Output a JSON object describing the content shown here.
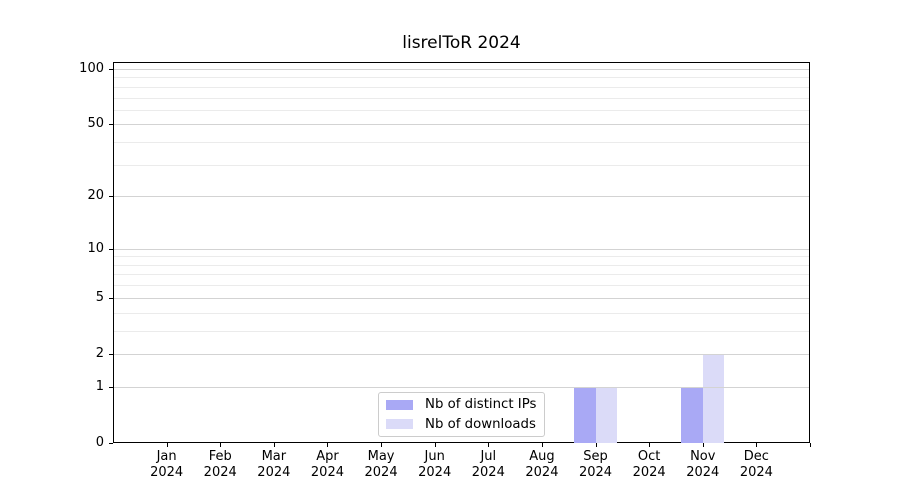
{
  "chart_data": {
    "type": "bar",
    "title": "lisrelToR 2024",
    "categories": [
      {
        "month": "Jan",
        "year": "2024"
      },
      {
        "month": "Feb",
        "year": "2024"
      },
      {
        "month": "Mar",
        "year": "2024"
      },
      {
        "month": "Apr",
        "year": "2024"
      },
      {
        "month": "May",
        "year": "2024"
      },
      {
        "month": "Jun",
        "year": "2024"
      },
      {
        "month": "Jul",
        "year": "2024"
      },
      {
        "month": "Aug",
        "year": "2024"
      },
      {
        "month": "Sep",
        "year": "2024"
      },
      {
        "month": "Oct",
        "year": "2024"
      },
      {
        "month": "Nov",
        "year": "2024"
      },
      {
        "month": "Dec",
        "year": "2024"
      }
    ],
    "series": [
      {
        "name": "Nb of distinct IPs",
        "color": "#a9a9f5",
        "values": [
          0,
          0,
          0,
          0,
          0,
          0,
          0,
          0,
          1,
          0,
          1,
          0
        ]
      },
      {
        "name": "Nb of downloads",
        "color": "#dbdbf8",
        "values": [
          0,
          0,
          0,
          0,
          0,
          0,
          0,
          0,
          1,
          0,
          2,
          0
        ]
      }
    ],
    "xlabel": "",
    "ylabel": "",
    "yscale": "log1p",
    "ylim": [
      0,
      109
    ],
    "yticks": [
      0,
      1,
      2,
      5,
      10,
      20,
      50,
      100
    ],
    "minor_yticks": [
      3,
      4,
      6,
      7,
      8,
      9,
      30,
      40,
      60,
      70,
      80,
      90
    ],
    "grid": "horizontal, major and minor, drawn above bars",
    "legend_position": "lower center"
  },
  "colors": {
    "background": "#ffffff",
    "axis": "#000000",
    "grid_major": "#d3d3d3",
    "grid_minor": "#ebebeb",
    "legend_border": "#cccccc",
    "text": "#000000"
  }
}
